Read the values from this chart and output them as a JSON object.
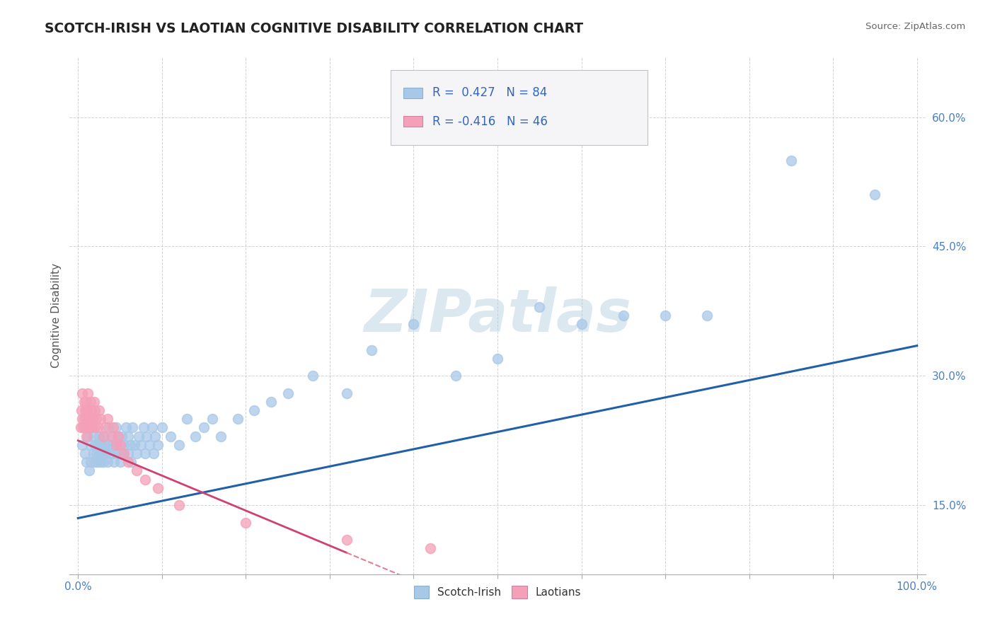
{
  "title": "SCOTCH-IRISH VS LAOTIAN COGNITIVE DISABILITY CORRELATION CHART",
  "source": "Source: ZipAtlas.com",
  "ylabel": "Cognitive Disability",
  "xlim": [
    -0.01,
    1.01
  ],
  "ylim": [
    0.07,
    0.67
  ],
  "x_ticks": [
    0.0,
    0.1,
    0.2,
    0.3,
    0.4,
    0.5,
    0.6,
    0.7,
    0.8,
    0.9,
    1.0
  ],
  "x_tick_labels": [
    "0.0%",
    "",
    "",
    "",
    "",
    "",
    "",
    "",
    "",
    "",
    "100.0%"
  ],
  "y_ticks": [
    0.15,
    0.3,
    0.45,
    0.6
  ],
  "y_tick_labels": [
    "15.0%",
    "30.0%",
    "45.0%",
    "60.0%"
  ],
  "scotch_irish_R": 0.427,
  "scotch_irish_N": 84,
  "laotian_R": -0.416,
  "laotian_N": 46,
  "scotch_irish_color": "#a8c8e8",
  "laotian_color": "#f4a0b8",
  "trend_scotch_color": "#2060a8",
  "trend_laotian_solid_color": "#d04070",
  "trend_laotian_dash_color": "#e08098",
  "watermark": "ZIPatlas",
  "scotch_irish_x": [
    0.005,
    0.008,
    0.01,
    0.012,
    0.013,
    0.015,
    0.015,
    0.016,
    0.018,
    0.018,
    0.02,
    0.02,
    0.022,
    0.023,
    0.025,
    0.025,
    0.025,
    0.027,
    0.028,
    0.03,
    0.03,
    0.03,
    0.032,
    0.033,
    0.035,
    0.035,
    0.036,
    0.038,
    0.04,
    0.04,
    0.042,
    0.043,
    0.045,
    0.045,
    0.047,
    0.048,
    0.05,
    0.05,
    0.052,
    0.053,
    0.055,
    0.057,
    0.06,
    0.06,
    0.062,
    0.063,
    0.065,
    0.067,
    0.07,
    0.072,
    0.075,
    0.078,
    0.08,
    0.082,
    0.085,
    0.088,
    0.09,
    0.092,
    0.095,
    0.1,
    0.11,
    0.12,
    0.13,
    0.14,
    0.15,
    0.16,
    0.17,
    0.19,
    0.21,
    0.23,
    0.25,
    0.28,
    0.32,
    0.35,
    0.4,
    0.45,
    0.5,
    0.55,
    0.6,
    0.65,
    0.7,
    0.75,
    0.85,
    0.95
  ],
  "scotch_irish_y": [
    0.22,
    0.21,
    0.2,
    0.23,
    0.19,
    0.22,
    0.2,
    0.24,
    0.21,
    0.23,
    0.2,
    0.22,
    0.21,
    0.2,
    0.22,
    0.21,
    0.23,
    0.2,
    0.22,
    0.21,
    0.2,
    0.23,
    0.22,
    0.21,
    0.2,
    0.22,
    0.24,
    0.21,
    0.22,
    0.23,
    0.21,
    0.2,
    0.22,
    0.24,
    0.21,
    0.23,
    0.22,
    0.2,
    0.23,
    0.21,
    0.22,
    0.24,
    0.21,
    0.23,
    0.22,
    0.2,
    0.24,
    0.22,
    0.21,
    0.23,
    0.22,
    0.24,
    0.21,
    0.23,
    0.22,
    0.24,
    0.21,
    0.23,
    0.22,
    0.24,
    0.23,
    0.22,
    0.25,
    0.23,
    0.24,
    0.25,
    0.23,
    0.25,
    0.26,
    0.27,
    0.28,
    0.3,
    0.28,
    0.33,
    0.36,
    0.3,
    0.32,
    0.38,
    0.36,
    0.37,
    0.37,
    0.37,
    0.55,
    0.51
  ],
  "laotian_x": [
    0.003,
    0.004,
    0.005,
    0.005,
    0.006,
    0.007,
    0.007,
    0.008,
    0.008,
    0.009,
    0.01,
    0.01,
    0.011,
    0.012,
    0.012,
    0.013,
    0.014,
    0.015,
    0.015,
    0.016,
    0.017,
    0.018,
    0.019,
    0.02,
    0.02,
    0.022,
    0.023,
    0.025,
    0.027,
    0.03,
    0.033,
    0.035,
    0.04,
    0.042,
    0.045,
    0.048,
    0.05,
    0.055,
    0.06,
    0.07,
    0.08,
    0.095,
    0.12,
    0.2,
    0.32,
    0.42
  ],
  "laotian_y": [
    0.24,
    0.26,
    0.25,
    0.28,
    0.24,
    0.27,
    0.25,
    0.26,
    0.24,
    0.27,
    0.25,
    0.23,
    0.26,
    0.24,
    0.28,
    0.25,
    0.24,
    0.27,
    0.25,
    0.26,
    0.24,
    0.25,
    0.27,
    0.24,
    0.26,
    0.25,
    0.24,
    0.26,
    0.25,
    0.23,
    0.24,
    0.25,
    0.23,
    0.24,
    0.22,
    0.23,
    0.22,
    0.21,
    0.2,
    0.19,
    0.18,
    0.17,
    0.15,
    0.13,
    0.11,
    0.1
  ],
  "trend_scotch_x_start": 0.0,
  "trend_scotch_x_end": 1.0,
  "trend_scotch_y_start": 0.135,
  "trend_scotch_y_end": 0.335,
  "trend_laotian_solid_x_start": 0.0,
  "trend_laotian_solid_x_end": 0.32,
  "trend_laotian_solid_y_start": 0.225,
  "trend_laotian_solid_y_end": 0.095,
  "trend_laotian_dash_x_start": 0.32,
  "trend_laotian_dash_x_end": 0.5,
  "trend_laotian_dash_y_start": 0.095,
  "trend_laotian_dash_y_end": 0.022
}
